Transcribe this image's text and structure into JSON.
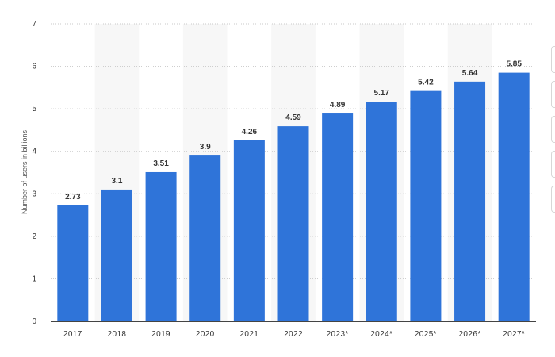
{
  "chart_data": {
    "type": "bar",
    "categories": [
      "2017",
      "2018",
      "2019",
      "2020",
      "2021",
      "2022",
      "2023*",
      "2024*",
      "2025*",
      "2026*",
      "2027*"
    ],
    "values": [
      2.73,
      3.1,
      3.51,
      3.9,
      4.26,
      4.59,
      4.89,
      5.17,
      5.42,
      5.64,
      5.85
    ],
    "data_labels": [
      "2.73",
      "3.1",
      "3.51",
      "3.9",
      "4.26",
      "4.59",
      "4.89",
      "5.17",
      "5.42",
      "5.64",
      "5.85"
    ],
    "ylabel": "Number of users in billions",
    "xlabel": "",
    "ylim": [
      0,
      7
    ],
    "yticks": [
      "0",
      "1",
      "2",
      "3",
      "4",
      "5",
      "6",
      "7"
    ],
    "grid": true,
    "bar_color": "#2f74d9"
  }
}
